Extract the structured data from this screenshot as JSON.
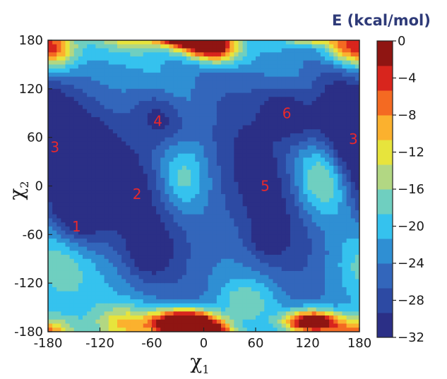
{
  "chart_data": {
    "type": "heatmap",
    "title": "",
    "xlabel": {
      "main": "χ",
      "sub": "1"
    },
    "ylabel": {
      "main": "χ",
      "sub": "2"
    },
    "xlim": [
      -180,
      180
    ],
    "ylim": [
      -180,
      180
    ],
    "x_ticks": [
      "-180",
      "-120",
      "-60",
      "0",
      "60",
      "120",
      "180"
    ],
    "y_ticks": [
      "180",
      "120",
      "60",
      "0",
      "-60",
      "-120",
      "-180"
    ],
    "colorbar": {
      "title": "E (kcal/mol)",
      "min": -32,
      "max": 0,
      "ticks": [
        "0",
        "−4",
        "−8",
        "−12",
        "−16",
        "−20",
        "−24",
        "−28",
        "−32"
      ],
      "colors": [
        "#2b2f86",
        "#2d4aa3",
        "#3366bb",
        "#2f8fd3",
        "#35c2ee",
        "#6fcfc0",
        "#b2d783",
        "#e7e43c",
        "#fbb12e",
        "#f46a22",
        "#d8251d",
        "#8f1512"
      ]
    },
    "minima": [
      {
        "label": "1",
        "chi1": -147,
        "chi2": -50
      },
      {
        "label": "2",
        "chi1": -77,
        "chi2": -10
      },
      {
        "label": "3",
        "chi1": -172,
        "chi2": 48
      },
      {
        "label": "3",
        "chi1": 173,
        "chi2": 58
      },
      {
        "label": "4",
        "chi1": -53,
        "chi2": 80
      },
      {
        "label": "5",
        "chi1": 71,
        "chi2": 0
      },
      {
        "label": "6",
        "chi1": 96,
        "chi2": 90
      }
    ]
  }
}
